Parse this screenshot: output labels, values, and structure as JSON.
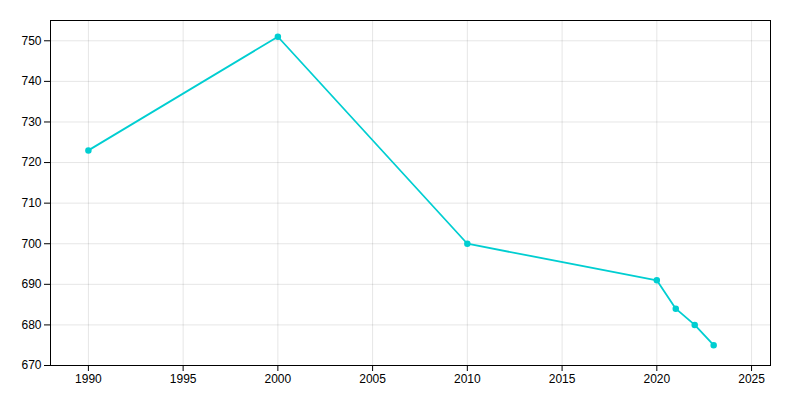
{
  "chart_data": {
    "type": "line",
    "x": [
      1990,
      2000,
      2010,
      2020,
      2021,
      2022,
      2023
    ],
    "values": [
      723,
      751,
      700,
      691,
      684,
      680,
      675
    ],
    "color": "#00CED1",
    "marker": "circle",
    "xlim": [
      1988,
      2026
    ],
    "ylim": [
      670,
      755
    ],
    "xticks": [
      1990,
      1995,
      2000,
      2005,
      2010,
      2015,
      2020,
      2025
    ],
    "yticks": [
      670,
      680,
      690,
      700,
      710,
      720,
      730,
      740,
      750
    ],
    "grid": true
  }
}
